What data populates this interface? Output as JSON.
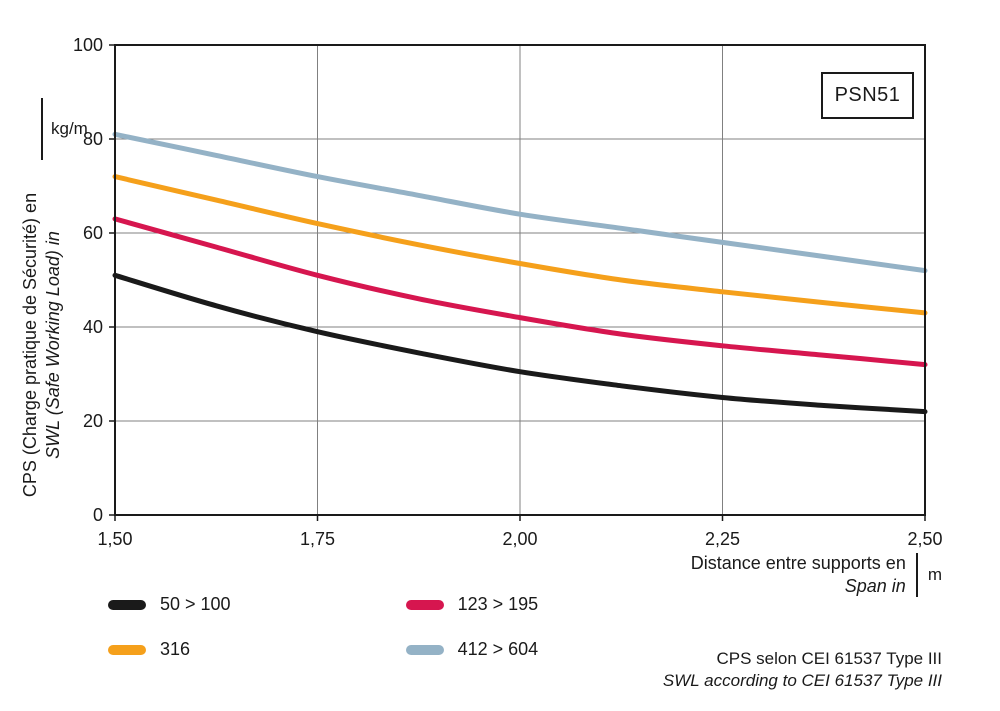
{
  "chart_data": {
    "type": "line",
    "badge": "PSN51",
    "xlim": [
      1.5,
      2.5
    ],
    "ylim": [
      0,
      100
    ],
    "x_ticks": [
      1.5,
      1.75,
      2.0,
      2.25,
      2.5
    ],
    "x_tick_labels": [
      "1,50",
      "1,75",
      "2,00",
      "2,25",
      "2,50"
    ],
    "y_ticks": [
      0,
      20,
      40,
      60,
      80,
      100
    ],
    "grid": true,
    "xlabel_fr": "Distance entre supports en",
    "xlabel_en": "Span in",
    "x_unit": "m",
    "ylabel_fr": "CPS (Charge pratique de Sécurité) en",
    "ylabel_en": "SWL (Safe Working Load) in",
    "y_unit": "kg/m",
    "note_fr": "CPS selon CEI 61537 Type III",
    "note_en": "SWL according to CEI 61537 Type III",
    "x": [
      1.5,
      1.625,
      1.75,
      1.875,
      2.0,
      2.125,
      2.25,
      2.375,
      2.5
    ],
    "series": [
      {
        "name": "50 > 100",
        "color": "#1a1a1a",
        "values": [
          51,
          44.5,
          39,
          34.5,
          30.5,
          27.5,
          25,
          23.3,
          22
        ]
      },
      {
        "name": "316",
        "color": "#f5a01b",
        "values": [
          72,
          67,
          62,
          57.5,
          53.5,
          50,
          47.5,
          45.2,
          43
        ]
      },
      {
        "name": "123 > 195",
        "color": "#d6164f",
        "values": [
          63,
          57,
          51,
          46,
          42,
          38.5,
          36,
          34,
          32
        ]
      },
      {
        "name": "412 > 604",
        "color": "#94b2c6",
        "values": [
          81,
          76.5,
          72,
          68,
          64,
          61,
          58,
          55,
          52
        ]
      }
    ],
    "colors": {
      "axis": "#1a1a1a",
      "grid": "#808080",
      "background": "#ffffff"
    }
  }
}
